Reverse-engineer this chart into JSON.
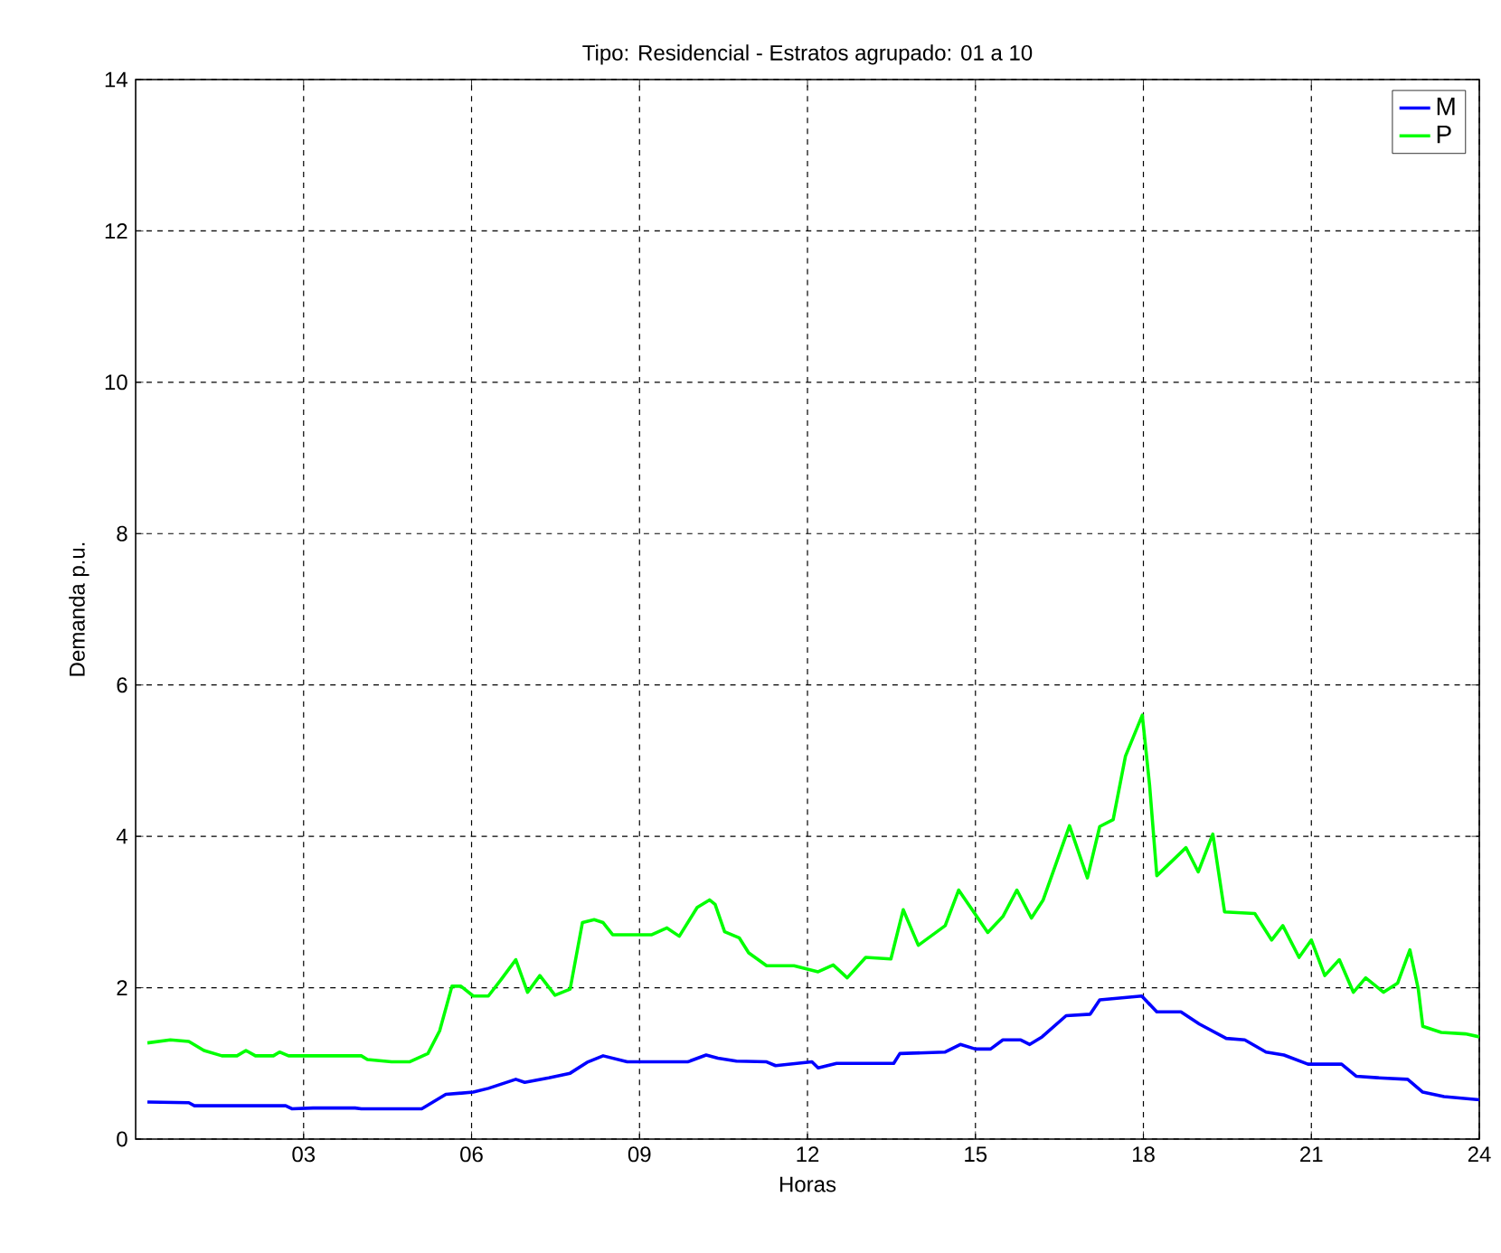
{
  "chart_data": {
    "type": "line",
    "title": "Tipo: Residencial - Estratos agrupado: 01 a 10",
    "xlabel": "Horas",
    "ylabel": "Demanda p.u.",
    "xlim": [
      0,
      24
    ],
    "ylim": [
      0,
      14
    ],
    "xticks": [
      {
        "value": 3,
        "label": "03"
      },
      {
        "value": 6,
        "label": "06"
      },
      {
        "value": 9,
        "label": "09"
      },
      {
        "value": 12,
        "label": "12"
      },
      {
        "value": 15,
        "label": "15"
      },
      {
        "value": 18,
        "label": "18"
      },
      {
        "value": 21,
        "label": "21"
      },
      {
        "value": 24,
        "label": "24"
      }
    ],
    "yticks": [
      0,
      2,
      4,
      6,
      8,
      10,
      12,
      14
    ],
    "grid": true,
    "legend": "top right",
    "line_style": "solid",
    "marker": "none",
    "series": [
      {
        "name": "M",
        "color": "#0000ff",
        "x": [
          0.21,
          0.95,
          1.05,
          2.68,
          2.79,
          3.17,
          3.92,
          4.03,
          5.11,
          5.54,
          6.03,
          6.3,
          6.79,
          6.95,
          7.38,
          7.76,
          8.08,
          8.35,
          8.78,
          9.86,
          10.19,
          10.4,
          10.73,
          11.27,
          11.43,
          12.08,
          12.19,
          12.52,
          13.54,
          13.65,
          14.46,
          14.73,
          15.0,
          15.27,
          15.49,
          15.81,
          15.97,
          16.19,
          16.62,
          17.05,
          17.22,
          17.97,
          18.24,
          18.67,
          19.0,
          19.48,
          19.81,
          20.19,
          20.51,
          20.94,
          21.54,
          21.8,
          22.18,
          22.72,
          22.99,
          23.37,
          24
        ],
        "values": [
          0.49,
          0.48,
          0.44,
          0.44,
          0.4,
          0.41,
          0.41,
          0.4,
          0.4,
          0.59,
          0.62,
          0.67,
          0.79,
          0.75,
          0.81,
          0.87,
          1.02,
          1.1,
          1.02,
          1.02,
          1.11,
          1.07,
          1.03,
          1.02,
          0.97,
          1.02,
          0.94,
          1.0,
          1.0,
          1.13,
          1.15,
          1.25,
          1.19,
          1.19,
          1.31,
          1.31,
          1.25,
          1.35,
          1.63,
          1.65,
          1.84,
          1.89,
          1.68,
          1.68,
          1.52,
          1.33,
          1.31,
          1.15,
          1.11,
          0.99,
          0.99,
          0.83,
          0.81,
          0.79,
          0.62,
          0.56,
          0.52
        ]
      },
      {
        "name": "P",
        "color": "#00ff00",
        "x": [
          0.21,
          0.62,
          0.95,
          1.22,
          1.54,
          1.81,
          1.97,
          2.14,
          2.46,
          2.57,
          2.73,
          4.03,
          4.14,
          4.57,
          4.89,
          5.22,
          5.43,
          5.65,
          5.81,
          6.03,
          6.3,
          6.52,
          6.79,
          7.0,
          7.22,
          7.49,
          7.76,
          7.98,
          8.19,
          8.35,
          8.52,
          9.22,
          9.49,
          9.71,
          10.03,
          10.25,
          10.35,
          10.52,
          10.78,
          10.95,
          11.27,
          11.76,
          12.19,
          12.46,
          12.71,
          13.04,
          13.49,
          13.71,
          13.98,
          14.46,
          14.7,
          15.22,
          15.49,
          15.74,
          16.0,
          16.21,
          16.68,
          17.0,
          17.22,
          17.46,
          17.68,
          17.98,
          18.11,
          18.24,
          18.76,
          18.98,
          19.24,
          19.45,
          19.99,
          20.29,
          20.49,
          20.78,
          21.0,
          21.24,
          21.5,
          21.75,
          21.97,
          22.29,
          22.54,
          22.76,
          22.91,
          22.99,
          23.32,
          23.75,
          24
        ],
        "values": [
          1.27,
          1.31,
          1.29,
          1.17,
          1.1,
          1.1,
          1.17,
          1.1,
          1.1,
          1.15,
          1.1,
          1.1,
          1.05,
          1.02,
          1.02,
          1.13,
          1.43,
          2.02,
          2.02,
          1.89,
          1.89,
          2.1,
          2.37,
          1.94,
          2.16,
          1.9,
          1.98,
          2.86,
          2.9,
          2.86,
          2.7,
          2.7,
          2.79,
          2.68,
          3.06,
          3.16,
          3.1,
          2.74,
          2.66,
          2.46,
          2.29,
          2.29,
          2.21,
          2.3,
          2.13,
          2.4,
          2.38,
          3.03,
          2.56,
          2.82,
          3.29,
          2.73,
          2.94,
          3.29,
          2.92,
          3.16,
          4.14,
          3.45,
          4.13,
          4.22,
          5.06,
          5.6,
          4.68,
          3.48,
          3.85,
          3.53,
          4.03,
          3.0,
          2.98,
          2.63,
          2.82,
          2.4,
          2.63,
          2.16,
          2.37,
          1.94,
          2.13,
          1.94,
          2.06,
          2.5,
          1.98,
          1.49,
          1.41,
          1.39,
          1.35
        ]
      }
    ]
  }
}
